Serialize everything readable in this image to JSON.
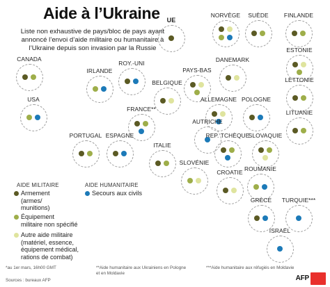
{
  "title": "Aide à l’Ukraine",
  "subtitle": "Liste non exhaustive de pays/bloc de pays ayant annoncé l’envoi d’aide militaire ou humanitaire à l’Ukraine depuis son invasion par la Russie",
  "colors": {
    "armement": "#5b5a24",
    "equipement": "#9eae4a",
    "autre": "#dfe49e",
    "secours": "#1c7ab8"
  },
  "countries": [
    {
      "id": "ue",
      "label": "UE",
      "bold": true,
      "dots": [
        "armement"
      ]
    },
    {
      "id": "norvege",
      "label": "NORVÈGE",
      "dots": [
        "armement",
        "autre",
        "equipement",
        "secours"
      ]
    },
    {
      "id": "suede",
      "label": "SUÈDE",
      "dots": [
        "armement",
        "equipement"
      ]
    },
    {
      "id": "finlande",
      "label": "FINLANDE",
      "dots": [
        "armement",
        "equipement"
      ]
    },
    {
      "id": "canada",
      "label": "CANADA",
      "dots": [
        "armement",
        "equipement"
      ]
    },
    {
      "id": "royuni",
      "label": "ROY.-UNI",
      "dots": [
        "armement",
        "secours"
      ]
    },
    {
      "id": "paysbas",
      "label": "PAYS-BAS",
      "dots": [
        "armement",
        "autre",
        "equipement"
      ]
    },
    {
      "id": "danemark",
      "label": "DANEMARK",
      "dots": [
        "armement",
        "autre"
      ]
    },
    {
      "id": "estonie",
      "label": "ESTONIE",
      "dots": [
        "armement",
        "autre",
        "equipement"
      ]
    },
    {
      "id": "irlande",
      "label": "IRLANDE",
      "dots": [
        "equipement",
        "secours"
      ]
    },
    {
      "id": "belgique",
      "label": "BELGIQUE",
      "dots": [
        "armement",
        "autre"
      ]
    },
    {
      "id": "lettonie",
      "label": "LETTONIE",
      "dots": [
        "armement",
        "equipement"
      ]
    },
    {
      "id": "usa",
      "label": "USA",
      "dots": [
        "equipement",
        "secours"
      ]
    },
    {
      "id": "france",
      "label": "FRANCE**",
      "dots": [
        "armement",
        "equipement",
        "secours"
      ]
    },
    {
      "id": "allemagne",
      "label": "ALLEMAGNE",
      "dots": [
        "armement",
        "autre",
        "secours"
      ]
    },
    {
      "id": "pologne",
      "label": "POLOGNE",
      "dots": [
        "armement",
        "secours"
      ]
    },
    {
      "id": "lituanie",
      "label": "LITUANIE",
      "dots": [
        "armement",
        "equipement"
      ]
    },
    {
      "id": "autriche",
      "label": "AUTRICHE",
      "dots": [
        "secours"
      ]
    },
    {
      "id": "portugal",
      "label": "PORTUGAL",
      "dots": [
        "armement",
        "equipement"
      ]
    },
    {
      "id": "espagne",
      "label": "ESPAGNE",
      "dots": [
        "armement",
        "secours"
      ]
    },
    {
      "id": "italie",
      "label": "ITALIE",
      "dots": [
        "armement",
        "equipement"
      ]
    },
    {
      "id": "reptcheque",
      "label": "REP. TCHÈQUE",
      "dots": [
        "armement",
        "equipement",
        "secours"
      ]
    },
    {
      "id": "slovaquie",
      "label": "SLOVAQUIE",
      "dots": [
        "armement",
        "equipement",
        "autre"
      ]
    },
    {
      "id": "slovenie",
      "label": "SLOVÉNIE",
      "dots": [
        "equipement",
        "autre"
      ]
    },
    {
      "id": "croatie",
      "label": "CROATIE",
      "dots": [
        "armement",
        "autre"
      ]
    },
    {
      "id": "roumanie",
      "label": "ROUMANIE",
      "dots": [
        "equipement",
        "secours"
      ]
    },
    {
      "id": "grece",
      "label": "GRÈCE",
      "dots": [
        "armement",
        "secours"
      ]
    },
    {
      "id": "turquie",
      "label": "TURQUIE***",
      "dots": [
        "secours"
      ]
    },
    {
      "id": "israel",
      "label": "ISRAËL",
      "dots": [
        "secours"
      ]
    }
  ],
  "legend": {
    "military_heading": "AIDE MILITAIRE",
    "humanitarian_heading": "AIDE HUMANITAIRE",
    "armement": {
      "label": "Armement",
      "sub": [
        "(armes/",
        "munitions)"
      ]
    },
    "equipement": {
      "label": "Équipement",
      "sub": [
        "militaire non spécifié"
      ]
    },
    "autre": {
      "label": "Autre aide militaire",
      "sub": [
        "(matériel, essence,",
        "équipement médical,",
        "rations de combat)"
      ]
    },
    "secours": {
      "label": "Secours aux civils"
    }
  },
  "footnotes": {
    "note1": "*au 1er mars, 16h00 GMT",
    "note2_line1": "**Aide humanitaire aux Ukrainiens en Pologne",
    "note2_line2": "et en Moldavie",
    "note3": "***Aide humanitaire aux réfugiés en Moldavie",
    "sources": "Sources : bureaux AFP"
  },
  "logo": "AFP"
}
